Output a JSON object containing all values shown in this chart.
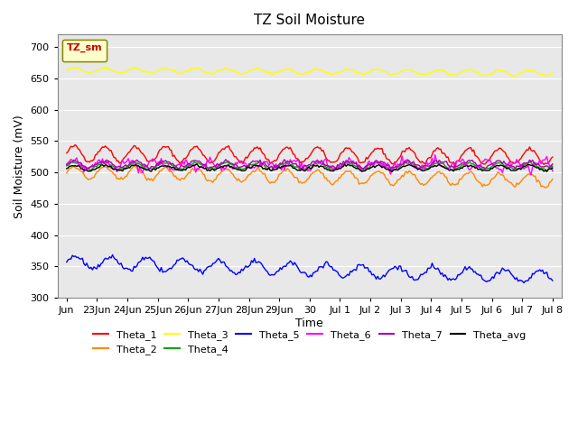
{
  "title": "TZ Soil Moisture",
  "xlabel": "Time",
  "ylabel": "Soil Moisture (mV)",
  "ylim": [
    300,
    720
  ],
  "yticks": [
    300,
    350,
    400,
    450,
    500,
    550,
    600,
    650,
    700
  ],
  "background_color": "#e8e8e8",
  "legend_label": "TZ_sm",
  "series_order": [
    "Theta_1",
    "Theta_2",
    "Theta_3",
    "Theta_4",
    "Theta_5",
    "Theta_6",
    "Theta_7",
    "Theta_avg"
  ],
  "series": {
    "Theta_1": {
      "color": "#ff0000",
      "base": 530,
      "amplitude": 12,
      "trend": -0.3,
      "freq": 1.0,
      "noise": 1.5
    },
    "Theta_2": {
      "color": "#ff8800",
      "base": 500,
      "amplitude": 10,
      "trend": -0.8,
      "freq": 1.0,
      "noise": 1.5
    },
    "Theta_3": {
      "color": "#ffff00",
      "base": 663,
      "amplitude": 4,
      "trend": -0.3,
      "freq": 1.0,
      "noise": 1.0
    },
    "Theta_4": {
      "color": "#00aa00",
      "base": 510,
      "amplitude": 5,
      "trend": 0.0,
      "freq": 1.0,
      "noise": 1.0
    },
    "Theta_5": {
      "color": "#0000ff",
      "base": 357,
      "amplitude": 10,
      "trend": -1.5,
      "freq": 0.85,
      "noise": 2.0
    },
    "Theta_6": {
      "color": "#ff00ff",
      "base": 512,
      "amplitude": 6,
      "trend": 0.0,
      "freq": 1.1,
      "noise": 3.5
    },
    "Theta_7": {
      "color": "#aa00aa",
      "base": 513,
      "amplitude": 5,
      "trend": 0.0,
      "freq": 1.0,
      "noise": 1.5
    },
    "Theta_avg": {
      "color": "#000000",
      "base": 507,
      "amplitude": 4,
      "trend": 0.0,
      "freq": 1.0,
      "noise": 1.0
    }
  },
  "xtick_positions": [
    0,
    1,
    2,
    3,
    4,
    5,
    6,
    7,
    8,
    9,
    10,
    11,
    12,
    13,
    14,
    15,
    16
  ],
  "xtick_labels": [
    "Jun",
    "23Jun",
    "24Jun",
    "25Jun",
    "26Jun",
    "27Jun",
    "28Jun",
    "29Jun",
    "30",
    "Jul 1",
    "Jul 2",
    "Jul 3",
    "Jul 4",
    "Jul 5",
    "Jul 6",
    "Jul 7",
    "Jul 8"
  ],
  "num_points": 340,
  "xlim": [
    -0.3,
    16.3
  ]
}
